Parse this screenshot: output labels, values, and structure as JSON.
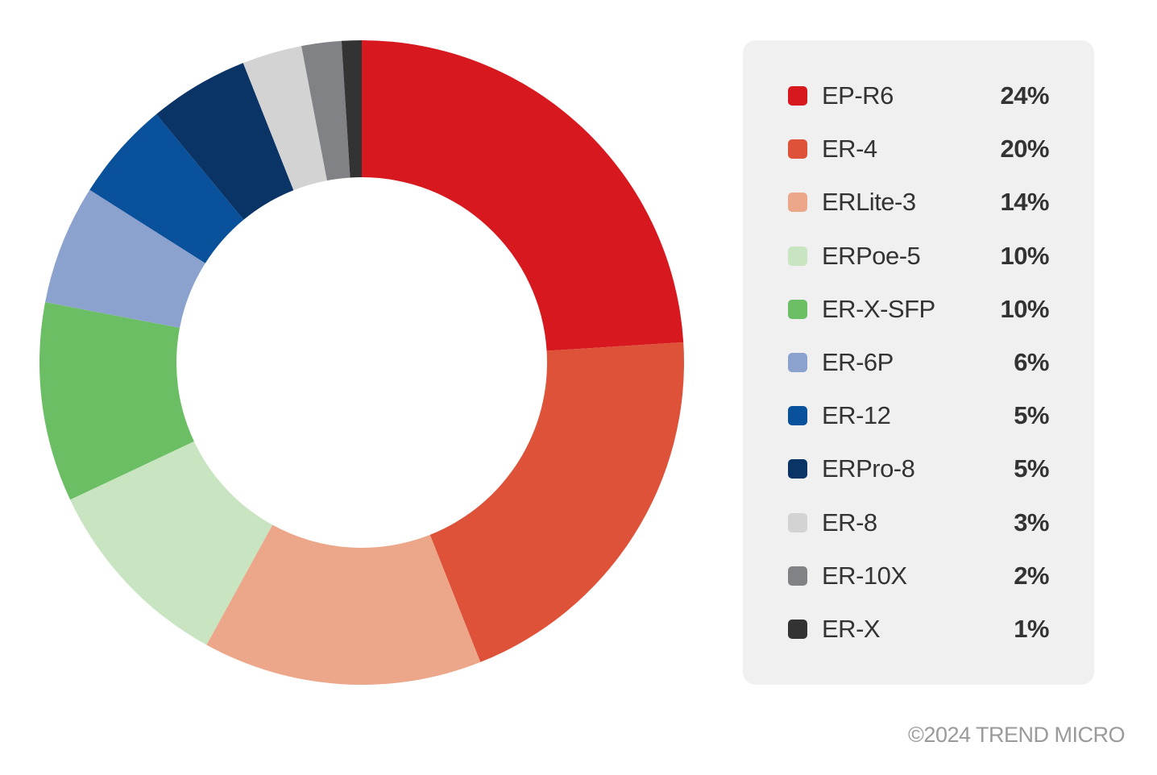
{
  "chart_data": {
    "type": "pie",
    "variant": "donut",
    "categories": [
      "EP-R6",
      "ER-4",
      "ERLite-3",
      "ERPoe-5",
      "ER-X-SFP",
      "ER-6P",
      "ER-12",
      "ERPro-8",
      "ER-8",
      "ER-10X",
      "ER-X"
    ],
    "values": [
      24,
      20,
      14,
      10,
      10,
      6,
      5,
      5,
      3,
      2,
      1
    ],
    "value_labels": [
      "24%",
      "20%",
      "14%",
      "10%",
      "10%",
      "6%",
      "5%",
      "5%",
      "3%",
      "2%",
      "1%"
    ],
    "colors": [
      "#d7191f",
      "#dd5238",
      "#eca68a",
      "#c9e4c0",
      "#6bbe63",
      "#8ba2cf",
      "#0a519c",
      "#0a3366",
      "#d3d3d3",
      "#808285",
      "#333333"
    ],
    "legend_position": "right",
    "start_angle": "top",
    "direction": "clockwise"
  },
  "copyright": "©2024 TREND MICRO"
}
